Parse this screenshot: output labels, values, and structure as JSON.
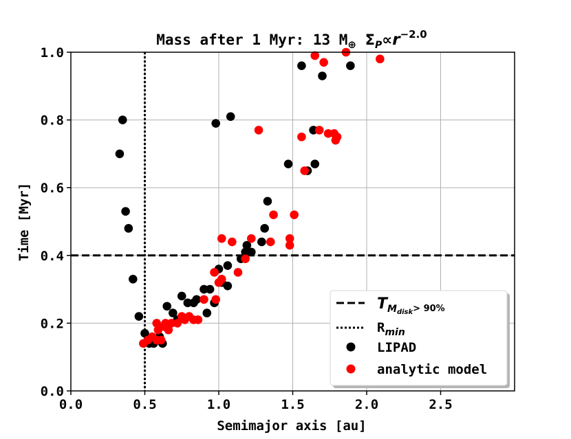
{
  "chart_data": {
    "type": "scatter",
    "title": "Mass after 1 Myr: 13 M",
    "title_symbols": {
      "earth": "⊕",
      "sigma": "Σ",
      "sigma_sub": "P",
      "propto": "∝",
      "r": "r",
      "exponent": "−2.0"
    },
    "xlabel": "Semimajor axis [au]",
    "ylabel": "Time [Myr]",
    "xlim": [
      0.0,
      3.0
    ],
    "ylim": [
      0.0,
      1.0
    ],
    "xticks": [
      "0.0",
      "0.5",
      "1.0",
      "1.5",
      "2.0",
      "2.5"
    ],
    "yticks": [
      "0.0",
      "0.2",
      "0.4",
      "0.6",
      "0.8",
      "1.0"
    ],
    "grid": true,
    "reference_lines": {
      "horizontal": {
        "y": 0.4,
        "style": "dashed"
      },
      "vertical": {
        "x": 0.5,
        "style": "dotted"
      }
    },
    "legend": {
      "position": "lower-right",
      "entries": [
        {
          "label_main": "T",
          "label_sub": "M",
          "label_subsub": "disk",
          "label_tail": "> 90%",
          "style": "dashed-line"
        },
        {
          "label_main": "R",
          "label_sub": "min",
          "style": "dotted-line"
        },
        {
          "label": "LIPAD",
          "style": "marker",
          "color": "#000000"
        },
        {
          "label": "analytic model",
          "style": "marker",
          "color": "#ff0000"
        }
      ]
    },
    "series": [
      {
        "name": "LIPAD",
        "color": "#000000",
        "points": [
          [
            0.33,
            0.7
          ],
          [
            0.35,
            0.8
          ],
          [
            0.37,
            0.53
          ],
          [
            0.39,
            0.48
          ],
          [
            0.42,
            0.33
          ],
          [
            0.46,
            0.22
          ],
          [
            0.5,
            0.17
          ],
          [
            0.53,
            0.14
          ],
          [
            0.56,
            0.14
          ],
          [
            0.6,
            0.16
          ],
          [
            0.62,
            0.14
          ],
          [
            0.65,
            0.25
          ],
          [
            0.69,
            0.23
          ],
          [
            0.72,
            0.21
          ],
          [
            0.75,
            0.28
          ],
          [
            0.79,
            0.26
          ],
          [
            0.83,
            0.26
          ],
          [
            0.85,
            0.27
          ],
          [
            0.9,
            0.3
          ],
          [
            0.92,
            0.23
          ],
          [
            0.94,
            0.3
          ],
          [
            0.98,
            0.79
          ],
          [
            0.97,
            0.26
          ],
          [
            1.0,
            0.36
          ],
          [
            1.02,
            0.32
          ],
          [
            1.06,
            0.31
          ],
          [
            1.06,
            0.37
          ],
          [
            1.08,
            0.81
          ],
          [
            1.15,
            0.39
          ],
          [
            1.18,
            0.41
          ],
          [
            1.19,
            0.43
          ],
          [
            1.22,
            0.41
          ],
          [
            1.29,
            0.44
          ],
          [
            1.31,
            0.48
          ],
          [
            1.33,
            0.56
          ],
          [
            1.47,
            0.67
          ],
          [
            1.56,
            0.96
          ],
          [
            1.6,
            0.65
          ],
          [
            1.64,
            0.77
          ],
          [
            1.65,
            0.67
          ],
          [
            1.7,
            0.93
          ],
          [
            1.89,
            0.96
          ]
        ]
      },
      {
        "name": "analytic model",
        "color": "#ff0000",
        "points": [
          [
            0.49,
            0.14
          ],
          [
            0.52,
            0.15
          ],
          [
            0.55,
            0.16
          ],
          [
            0.58,
            0.2
          ],
          [
            0.58,
            0.15
          ],
          [
            0.59,
            0.18
          ],
          [
            0.61,
            0.15
          ],
          [
            0.63,
            0.19
          ],
          [
            0.64,
            0.2
          ],
          [
            0.66,
            0.18
          ],
          [
            0.68,
            0.2
          ],
          [
            0.72,
            0.2
          ],
          [
            0.75,
            0.22
          ],
          [
            0.77,
            0.21
          ],
          [
            0.8,
            0.22
          ],
          [
            0.83,
            0.21
          ],
          [
            0.86,
            0.21
          ],
          [
            0.9,
            0.27
          ],
          [
            0.97,
            0.35
          ],
          [
            0.98,
            0.27
          ],
          [
            1.0,
            0.32
          ],
          [
            1.02,
            0.33
          ],
          [
            1.02,
            0.45
          ],
          [
            1.09,
            0.44
          ],
          [
            1.13,
            0.35
          ],
          [
            1.18,
            0.39
          ],
          [
            1.22,
            0.45
          ],
          [
            1.27,
            0.77
          ],
          [
            1.35,
            0.44
          ],
          [
            1.37,
            0.52
          ],
          [
            1.48,
            0.43
          ],
          [
            1.48,
            0.45
          ],
          [
            1.51,
            0.52
          ],
          [
            1.56,
            0.75
          ],
          [
            1.58,
            0.65
          ],
          [
            1.65,
            0.99
          ],
          [
            1.68,
            0.77
          ],
          [
            1.71,
            0.97
          ],
          [
            1.74,
            0.76
          ],
          [
            1.78,
            0.76
          ],
          [
            1.79,
            0.74
          ],
          [
            1.8,
            0.75
          ],
          [
            1.86,
            1.0
          ],
          [
            2.09,
            0.98
          ]
        ]
      }
    ]
  }
}
